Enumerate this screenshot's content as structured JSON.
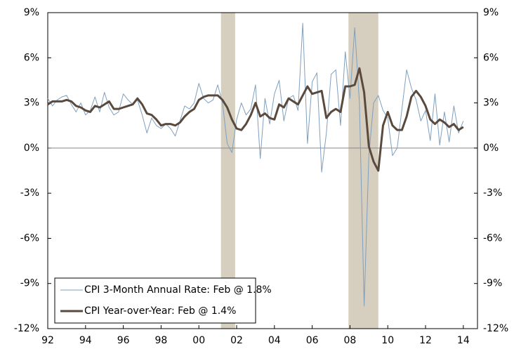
{
  "chart_data": {
    "type": "line",
    "x": [
      1992,
      1992.25,
      1992.5,
      1992.75,
      1993,
      1993.25,
      1993.5,
      1993.75,
      1994,
      1994.25,
      1994.5,
      1994.75,
      1995,
      1995.25,
      1995.5,
      1995.75,
      1996,
      1996.25,
      1996.5,
      1996.75,
      1997,
      1997.25,
      1997.5,
      1997.75,
      1998,
      1998.25,
      1998.5,
      1998.75,
      1999,
      1999.25,
      1999.5,
      1999.75,
      2000,
      2000.25,
      2000.5,
      2000.75,
      2001,
      2001.25,
      2001.5,
      2001.75,
      2002,
      2002.25,
      2002.5,
      2002.75,
      2003,
      2003.25,
      2003.5,
      2003.75,
      2004,
      2004.25,
      2004.5,
      2004.75,
      2005,
      2005.25,
      2005.5,
      2005.75,
      2006,
      2006.25,
      2006.5,
      2006.75,
      2007,
      2007.25,
      2007.5,
      2007.75,
      2008,
      2008.25,
      2008.5,
      2008.75,
      2009,
      2009.25,
      2009.5,
      2009.75,
      2010,
      2010.25,
      2010.5,
      2010.75,
      2011,
      2011.25,
      2011.5,
      2011.75,
      2012,
      2012.25,
      2012.5,
      2012.75,
      2013,
      2013.25,
      2013.5,
      2013.75,
      2014
    ],
    "series": [
      {
        "name": "CPI 3-Month Annual Rate: Feb @ 1.8%",
        "color": "#7f9fbf",
        "width": 1,
        "values": [
          3.3,
          2.8,
          3.2,
          3.4,
          3.5,
          2.9,
          2.4,
          3.0,
          2.2,
          2.5,
          3.4,
          2.4,
          3.7,
          2.7,
          2.2,
          2.4,
          3.6,
          3.2,
          2.9,
          3.2,
          2.2,
          1.0,
          2.0,
          1.5,
          1.3,
          1.6,
          1.3,
          0.8,
          1.8,
          2.8,
          2.6,
          3.0,
          4.3,
          3.3,
          3.0,
          3.2,
          4.2,
          3.0,
          0.3,
          -0.3,
          1.9,
          3.0,
          2.2,
          2.6,
          4.2,
          -0.7,
          3.3,
          1.6,
          3.6,
          4.5,
          1.8,
          3.3,
          3.5,
          2.5,
          8.3,
          0.3,
          4.4,
          5.0,
          -1.6,
          1.0,
          4.9,
          5.2,
          1.5,
          6.4,
          3.3,
          8.0,
          3.0,
          -10.5,
          -0.5,
          3.0,
          3.5,
          2.5,
          2.0,
          -0.5,
          0.0,
          2.6,
          5.2,
          4.0,
          3.2,
          1.8,
          2.5,
          0.5,
          3.6,
          0.2,
          2.4,
          0.4,
          2.8,
          1.0,
          1.8
        ]
      },
      {
        "name": "CPI Year-over-Year: Feb @ 1.4%",
        "color": "#5a4a3e",
        "width": 3,
        "values": [
          2.9,
          3.1,
          3.1,
          3.1,
          3.2,
          3.1,
          2.8,
          2.7,
          2.5,
          2.4,
          2.8,
          2.7,
          2.9,
          3.1,
          2.6,
          2.6,
          2.7,
          2.8,
          2.9,
          3.3,
          2.9,
          2.3,
          2.2,
          1.9,
          1.5,
          1.6,
          1.6,
          1.5,
          1.7,
          2.1,
          2.4,
          2.6,
          3.2,
          3.4,
          3.5,
          3.5,
          3.5,
          3.2,
          2.7,
          1.9,
          1.3,
          1.2,
          1.6,
          2.2,
          3.0,
          2.1,
          2.3,
          2.0,
          1.9,
          2.9,
          2.7,
          3.3,
          3.1,
          2.9,
          3.5,
          4.1,
          3.6,
          3.7,
          3.8,
          2.0,
          2.4,
          2.6,
          2.4,
          4.1,
          4.1,
          4.2,
          5.3,
          3.7,
          0.1,
          -0.9,
          -1.5,
          1.5,
          2.4,
          1.5,
          1.2,
          1.2,
          2.1,
          3.4,
          3.8,
          3.4,
          2.8,
          1.9,
          1.6,
          1.9,
          1.7,
          1.4,
          1.6,
          1.2,
          1.4
        ]
      }
    ],
    "recessions": [
      [
        2001.17,
        2001.92
      ],
      [
        2007.92,
        2009.5
      ]
    ],
    "recession_color": "#d6cfc0",
    "xlim": [
      1992,
      2014.75
    ],
    "xticks": [
      {
        "value": 1992,
        "label": "92"
      },
      {
        "value": 1994,
        "label": "94"
      },
      {
        "value": 1996,
        "label": "96"
      },
      {
        "value": 1998,
        "label": "98"
      },
      {
        "value": 2000,
        "label": "00"
      },
      {
        "value": 2002,
        "label": "02"
      },
      {
        "value": 2004,
        "label": "04"
      },
      {
        "value": 2006,
        "label": "06"
      },
      {
        "value": 2008,
        "label": "08"
      },
      {
        "value": 2010,
        "label": "10"
      },
      {
        "value": 2012,
        "label": "12"
      },
      {
        "value": 2014,
        "label": "14"
      }
    ],
    "ylim": [
      -12,
      9
    ],
    "yticks": [
      {
        "value": -12,
        "label": "-12%"
      },
      {
        "value": -9,
        "label": "-9%"
      },
      {
        "value": -6,
        "label": "-6%"
      },
      {
        "value": -3,
        "label": "-3%"
      },
      {
        "value": 0,
        "label": "0%"
      },
      {
        "value": 3,
        "label": "3%"
      },
      {
        "value": 6,
        "label": "6%"
      },
      {
        "value": 9,
        "label": "9%"
      }
    ],
    "y2lim": [
      -12,
      9
    ],
    "y2ticks": [
      {
        "value": -12,
        "label": "-12%"
      },
      {
        "value": -9,
        "label": "-9%"
      },
      {
        "value": -6,
        "label": "-6%"
      },
      {
        "value": -3,
        "label": "-3%"
      },
      {
        "value": 0,
        "label": "0%"
      },
      {
        "value": 3,
        "label": "3%"
      },
      {
        "value": 6,
        "label": "6%"
      },
      {
        "value": 9,
        "label": "9%"
      }
    ],
    "legend": "lower-left"
  }
}
